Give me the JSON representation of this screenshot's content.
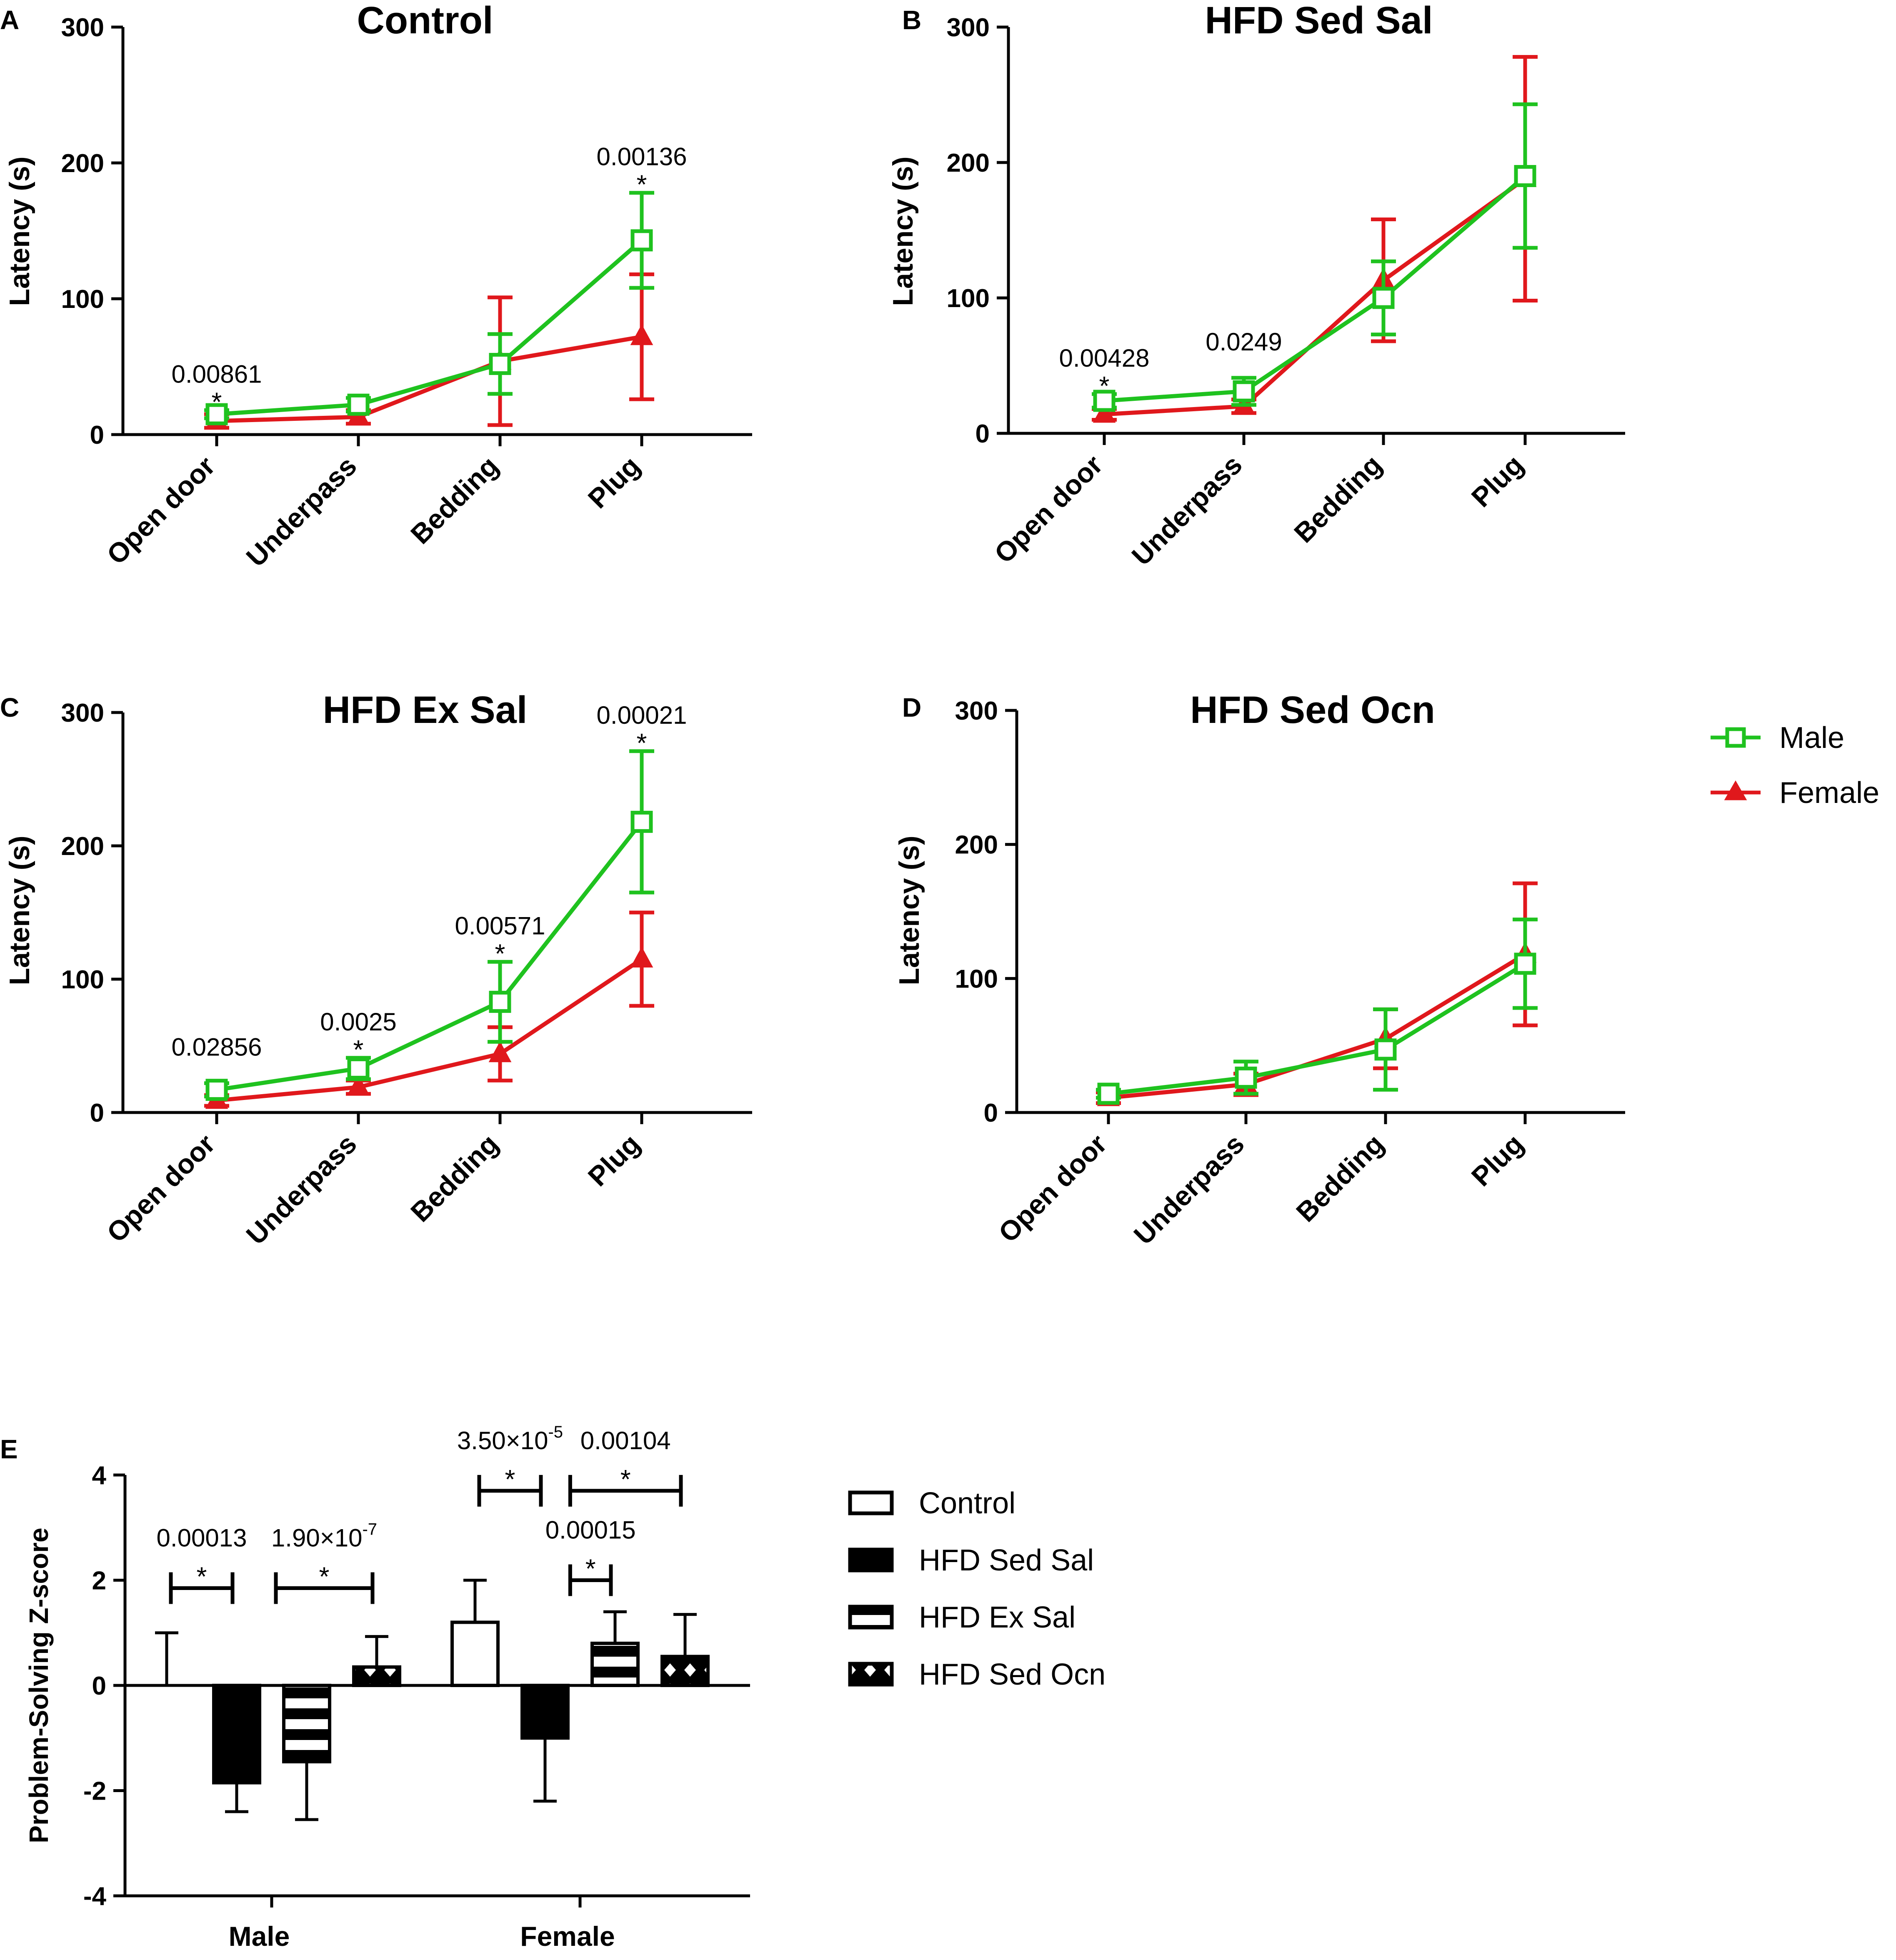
{
  "colors": {
    "male": "#1fc21f",
    "female": "#e0181c",
    "axis": "#000000"
  },
  "chart_data": [
    {
      "panel": "A",
      "type": "line",
      "title": "Control",
      "ylabel": "Latency (s)",
      "ylim": [
        0,
        300
      ],
      "yticks": [
        "0",
        "100",
        "200",
        "300"
      ],
      "categories": [
        "Open door",
        "Underpass",
        "Bedding",
        "Plug"
      ],
      "series": [
        {
          "name": "Male",
          "values": [
            15,
            22,
            52,
            143
          ],
          "errors": [
            3,
            5,
            22,
            35
          ]
        },
        {
          "name": "Female",
          "values": [
            10,
            13,
            54,
            72
          ],
          "errors": [
            5,
            5,
            47,
            46
          ]
        }
      ],
      "annotations": [
        {
          "category": 0,
          "text": "0.00861",
          "star": "*"
        },
        {
          "category": 3,
          "text": "0.00136",
          "star": "*"
        }
      ]
    },
    {
      "panel": "B",
      "type": "line",
      "title": "HFD Sed Sal",
      "ylabel": "Latency (s)",
      "ylim": [
        0,
        300
      ],
      "yticks": [
        "0",
        "100",
        "200",
        "300"
      ],
      "categories": [
        "Open door",
        "Underpass",
        "Bedding",
        "Plug"
      ],
      "series": [
        {
          "name": "Male",
          "values": [
            24,
            31,
            100,
            190
          ],
          "errors": [
            5,
            10,
            27,
            53
          ]
        },
        {
          "name": "Female",
          "values": [
            14,
            20,
            113,
            188
          ],
          "errors": [
            4,
            5,
            45,
            90
          ]
        }
      ],
      "annotations": [
        {
          "category": 0,
          "text": "0.00428",
          "star": "*"
        },
        {
          "category": 1,
          "text": "0.0249",
          "star": ""
        }
      ]
    },
    {
      "panel": "C",
      "type": "line",
      "title": "HFD Ex Sal",
      "ylabel": "Latency (s)",
      "ylim": [
        0,
        300
      ],
      "yticks": [
        "0",
        "100",
        "200",
        "300"
      ],
      "categories": [
        "Open door",
        "Underpass",
        "Bedding",
        "Plug"
      ],
      "series": [
        {
          "name": "Male",
          "values": [
            17,
            33,
            83,
            218
          ],
          "errors": [
            5,
            8,
            30,
            53
          ]
        },
        {
          "name": "Female",
          "values": [
            9,
            19,
            44,
            115
          ],
          "errors": [
            4,
            5,
            20,
            35
          ]
        }
      ],
      "annotations": [
        {
          "category": 0,
          "text": "0.02856",
          "star": ""
        },
        {
          "category": 1,
          "text": "0.0025",
          "star": "*"
        },
        {
          "category": 2,
          "text": "0.00571",
          "star": "*"
        },
        {
          "category": 3,
          "text": "0.00021",
          "star": "*"
        }
      ]
    },
    {
      "panel": "D",
      "type": "line",
      "title": "HFD Sed Ocn",
      "ylabel": "Latency (s)",
      "ylim": [
        0,
        300
      ],
      "yticks": [
        "0",
        "100",
        "200",
        "300"
      ],
      "categories": [
        "Open door",
        "Underpass",
        "Bedding",
        "Plug"
      ],
      "series": [
        {
          "name": "Male",
          "values": [
            14,
            26,
            47,
            111
          ],
          "errors": [
            3,
            12,
            30,
            33
          ]
        },
        {
          "name": "Female",
          "values": [
            11,
            21,
            55,
            118
          ],
          "errors": [
            4,
            8,
            22,
            53
          ]
        }
      ],
      "annotations": []
    },
    {
      "panel": "E",
      "type": "bar",
      "ylabel": "Problem-Solving Z-score",
      "ylim": [
        -4,
        4
      ],
      "yticks": [
        "-4",
        "-2",
        "0",
        "2",
        "4"
      ],
      "categories": [
        "Male",
        "Female"
      ],
      "series": [
        {
          "name": "Control",
          "pattern": "open",
          "values": [
            0,
            1.2
          ],
          "errors": [
            1.0,
            0.8
          ]
        },
        {
          "name": "HFD Sed Sal",
          "pattern": "solid",
          "values": [
            -1.85,
            -1.0
          ],
          "errors": [
            0.55,
            1.2
          ]
        },
        {
          "name": "HFD Ex Sal",
          "pattern": "stripes",
          "values": [
            -1.45,
            0.8
          ],
          "errors": [
            1.1,
            0.6
          ]
        },
        {
          "name": "HFD Sed Ocn",
          "pattern": "dots",
          "values": [
            0.35,
            0.55
          ],
          "errors": [
            0.58,
            0.8
          ]
        }
      ],
      "annotations": [
        {
          "group": 0,
          "from": 0,
          "to": 1,
          "y": 1.85,
          "text": "0.00013",
          "star": "*"
        },
        {
          "group": 0,
          "from": 1.5,
          "to": 3,
          "y": 1.85,
          "text": "1.90×10",
          "sup": "-7",
          "star": "*"
        },
        {
          "group": 1,
          "from": 0,
          "to": 1,
          "y": 3.7,
          "text": "3.50×10",
          "sup": "-5",
          "star": "*"
        },
        {
          "group": 1,
          "from": 1.3,
          "to": 3,
          "y": 3.7,
          "text": "0.00104",
          "star": "*"
        },
        {
          "group": 1,
          "from": 1.3,
          "to": 2,
          "y": 2.0,
          "text": "0.00015",
          "star": "*"
        }
      ]
    }
  ]
}
